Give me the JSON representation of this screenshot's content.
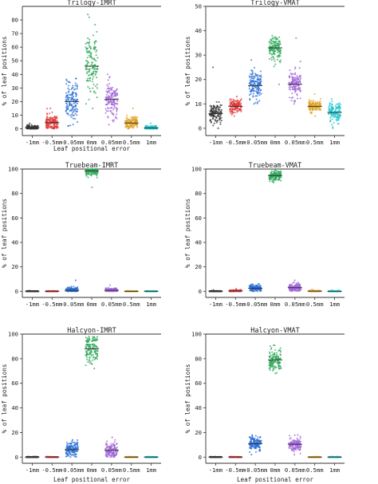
{
  "figure": {
    "x_tick_labels": [
      "-1mm",
      "-0.5mm",
      "-0.05mm",
      "0mm",
      "0.05mm",
      "0.5mm",
      "1mm"
    ]
  },
  "series_colors": [
    "#3a3a3a",
    "#e03838",
    "#2a6fd6",
    "#2ea85a",
    "#a064d8",
    "#e0a020",
    "#22c5cc"
  ],
  "chart_data": [
    {
      "type": "scatter",
      "id": "trilogy-imrt",
      "title": "Trilogy-IMRT",
      "xlabel": "Leaf positional error",
      "ylabel": "% of leaf positions",
      "categories": [
        "-1mm",
        "-0.5mm",
        "-0.05mm",
        "0mm",
        "0.05mm",
        "0.5mm",
        "1mm"
      ],
      "ylim": [
        -5,
        90
      ],
      "yticks": [
        0,
        10,
        20,
        30,
        40,
        50,
        60,
        70,
        80
      ],
      "grid": false,
      "medians": [
        0.8,
        4.5,
        20,
        46,
        21.5,
        4.2,
        0.6
      ],
      "spreads": [
        1.0,
        3.0,
        7.0,
        12.0,
        6.0,
        2.2,
        0.8
      ],
      "ranges": [
        [
          0,
          4
        ],
        [
          0,
          15
        ],
        [
          2,
          37
        ],
        [
          15,
          84
        ],
        [
          3,
          40
        ],
        [
          0,
          15
        ],
        [
          0,
          4
        ]
      ]
    },
    {
      "type": "scatter",
      "id": "trilogy-vmat",
      "title": "Trilogy-VMAT",
      "xlabel": "",
      "ylabel": "% of leaf positions",
      "categories": [
        "-1mm",
        "-0.5mm",
        "-0.05mm",
        "0mm",
        "0.05mm",
        "0.5mm",
        "1mm"
      ],
      "ylim": [
        -3,
        50
      ],
      "yticks": [
        0,
        10,
        20,
        30,
        40,
        50
      ],
      "grid": false,
      "medians": [
        6,
        9,
        17.5,
        33,
        18,
        9,
        6.5
      ],
      "spreads": [
        2.0,
        1.3,
        2.8,
        2.3,
        2.8,
        1.2,
        2.0
      ],
      "ranges": [
        [
          0,
          25
        ],
        [
          5,
          13
        ],
        [
          10,
          28
        ],
        [
          18,
          38
        ],
        [
          10,
          37
        ],
        [
          5,
          14
        ],
        [
          0,
          12
        ]
      ]
    },
    {
      "type": "scatter",
      "id": "truebeam-imrt",
      "title": "Truebeam-IMRT",
      "xlabel": "",
      "ylabel": "% of leaf positions",
      "categories": [
        "-1mm",
        "-0.5mm",
        "-0.05mm",
        "0mm",
        "0.05mm",
        "0.5mm",
        "1mm"
      ],
      "ylim": [
        -5,
        100
      ],
      "yticks": [
        0,
        20,
        40,
        60,
        80,
        100
      ],
      "grid": false,
      "medians": [
        0,
        0,
        0.8,
        98.5,
        0.8,
        0,
        0
      ],
      "spreads": [
        0.15,
        0.15,
        1.2,
        2.0,
        0.9,
        0.15,
        0.15
      ],
      "ranges": [
        [
          0,
          0.5
        ],
        [
          0,
          0.5
        ],
        [
          0,
          9
        ],
        [
          85,
          100
        ],
        [
          0,
          5
        ],
        [
          0,
          0.5
        ],
        [
          0,
          0.5
        ]
      ]
    },
    {
      "type": "scatter",
      "id": "truebeam-vmat",
      "title": "Truebeam-VMAT",
      "xlabel": "",
      "ylabel": "% of leaf positions",
      "categories": [
        "-1mm",
        "-0.5mm",
        "-0.05mm",
        "0mm",
        "0.05mm",
        "0.5mm",
        "1mm"
      ],
      "ylim": [
        -5,
        100
      ],
      "yticks": [
        0,
        20,
        40,
        60,
        80,
        100
      ],
      "grid": false,
      "medians": [
        0,
        0.3,
        2.5,
        94.5,
        3,
        0.1,
        0
      ],
      "spreads": [
        0.2,
        0.4,
        1.3,
        2.0,
        1.6,
        0.3,
        0.2
      ],
      "ranges": [
        [
          0,
          1
        ],
        [
          0,
          2
        ],
        [
          0,
          6
        ],
        [
          89,
          99
        ],
        [
          0,
          9
        ],
        [
          0,
          1.5
        ],
        [
          0,
          1
        ]
      ]
    },
    {
      "type": "scatter",
      "id": "halcyon-imrt",
      "title": "Halcyon-IMRT",
      "xlabel": "Leaf positional error",
      "ylabel": "% of leaf positions",
      "categories": [
        "-1mm",
        "-0.5mm",
        "-0.05mm",
        "0mm",
        "0.05mm",
        "0.5mm",
        "1mm"
      ],
      "ylim": [
        -5,
        100
      ],
      "yticks": [
        0,
        20,
        40,
        60,
        80,
        100
      ],
      "grid": false,
      "medians": [
        0,
        0,
        6,
        88,
        5.5,
        0,
        0
      ],
      "spreads": [
        0.15,
        0.15,
        3.0,
        5.5,
        3.0,
        0.15,
        0.15
      ],
      "ranges": [
        [
          0,
          0.5
        ],
        [
          0,
          0.5
        ],
        [
          0,
          14
        ],
        [
          72,
          98
        ],
        [
          0,
          16
        ],
        [
          0,
          0.5
        ],
        [
          0,
          0.5
        ]
      ]
    },
    {
      "type": "scatter",
      "id": "halcyon-vmat",
      "title": "Halcyon-VMAT",
      "xlabel": "Leaf positional error",
      "ylabel": "% of leaf positions",
      "categories": [
        "-1mm",
        "-0.5mm",
        "-0.05mm",
        "0mm",
        "0.05mm",
        "0.5mm",
        "1mm"
      ],
      "ylim": [
        -5,
        100
      ],
      "yticks": [
        0,
        20,
        40,
        60,
        80,
        100
      ],
      "grid": false,
      "medians": [
        0,
        0,
        11,
        79,
        10.5,
        0,
        0
      ],
      "spreads": [
        0.15,
        0.15,
        2.8,
        4.5,
        2.8,
        0.15,
        0.15
      ],
      "ranges": [
        [
          0,
          0.5
        ],
        [
          0,
          0.5
        ],
        [
          2,
          18
        ],
        [
          68,
          91
        ],
        [
          2,
          18
        ],
        [
          0,
          0.5
        ],
        [
          0,
          0.5
        ]
      ]
    }
  ]
}
